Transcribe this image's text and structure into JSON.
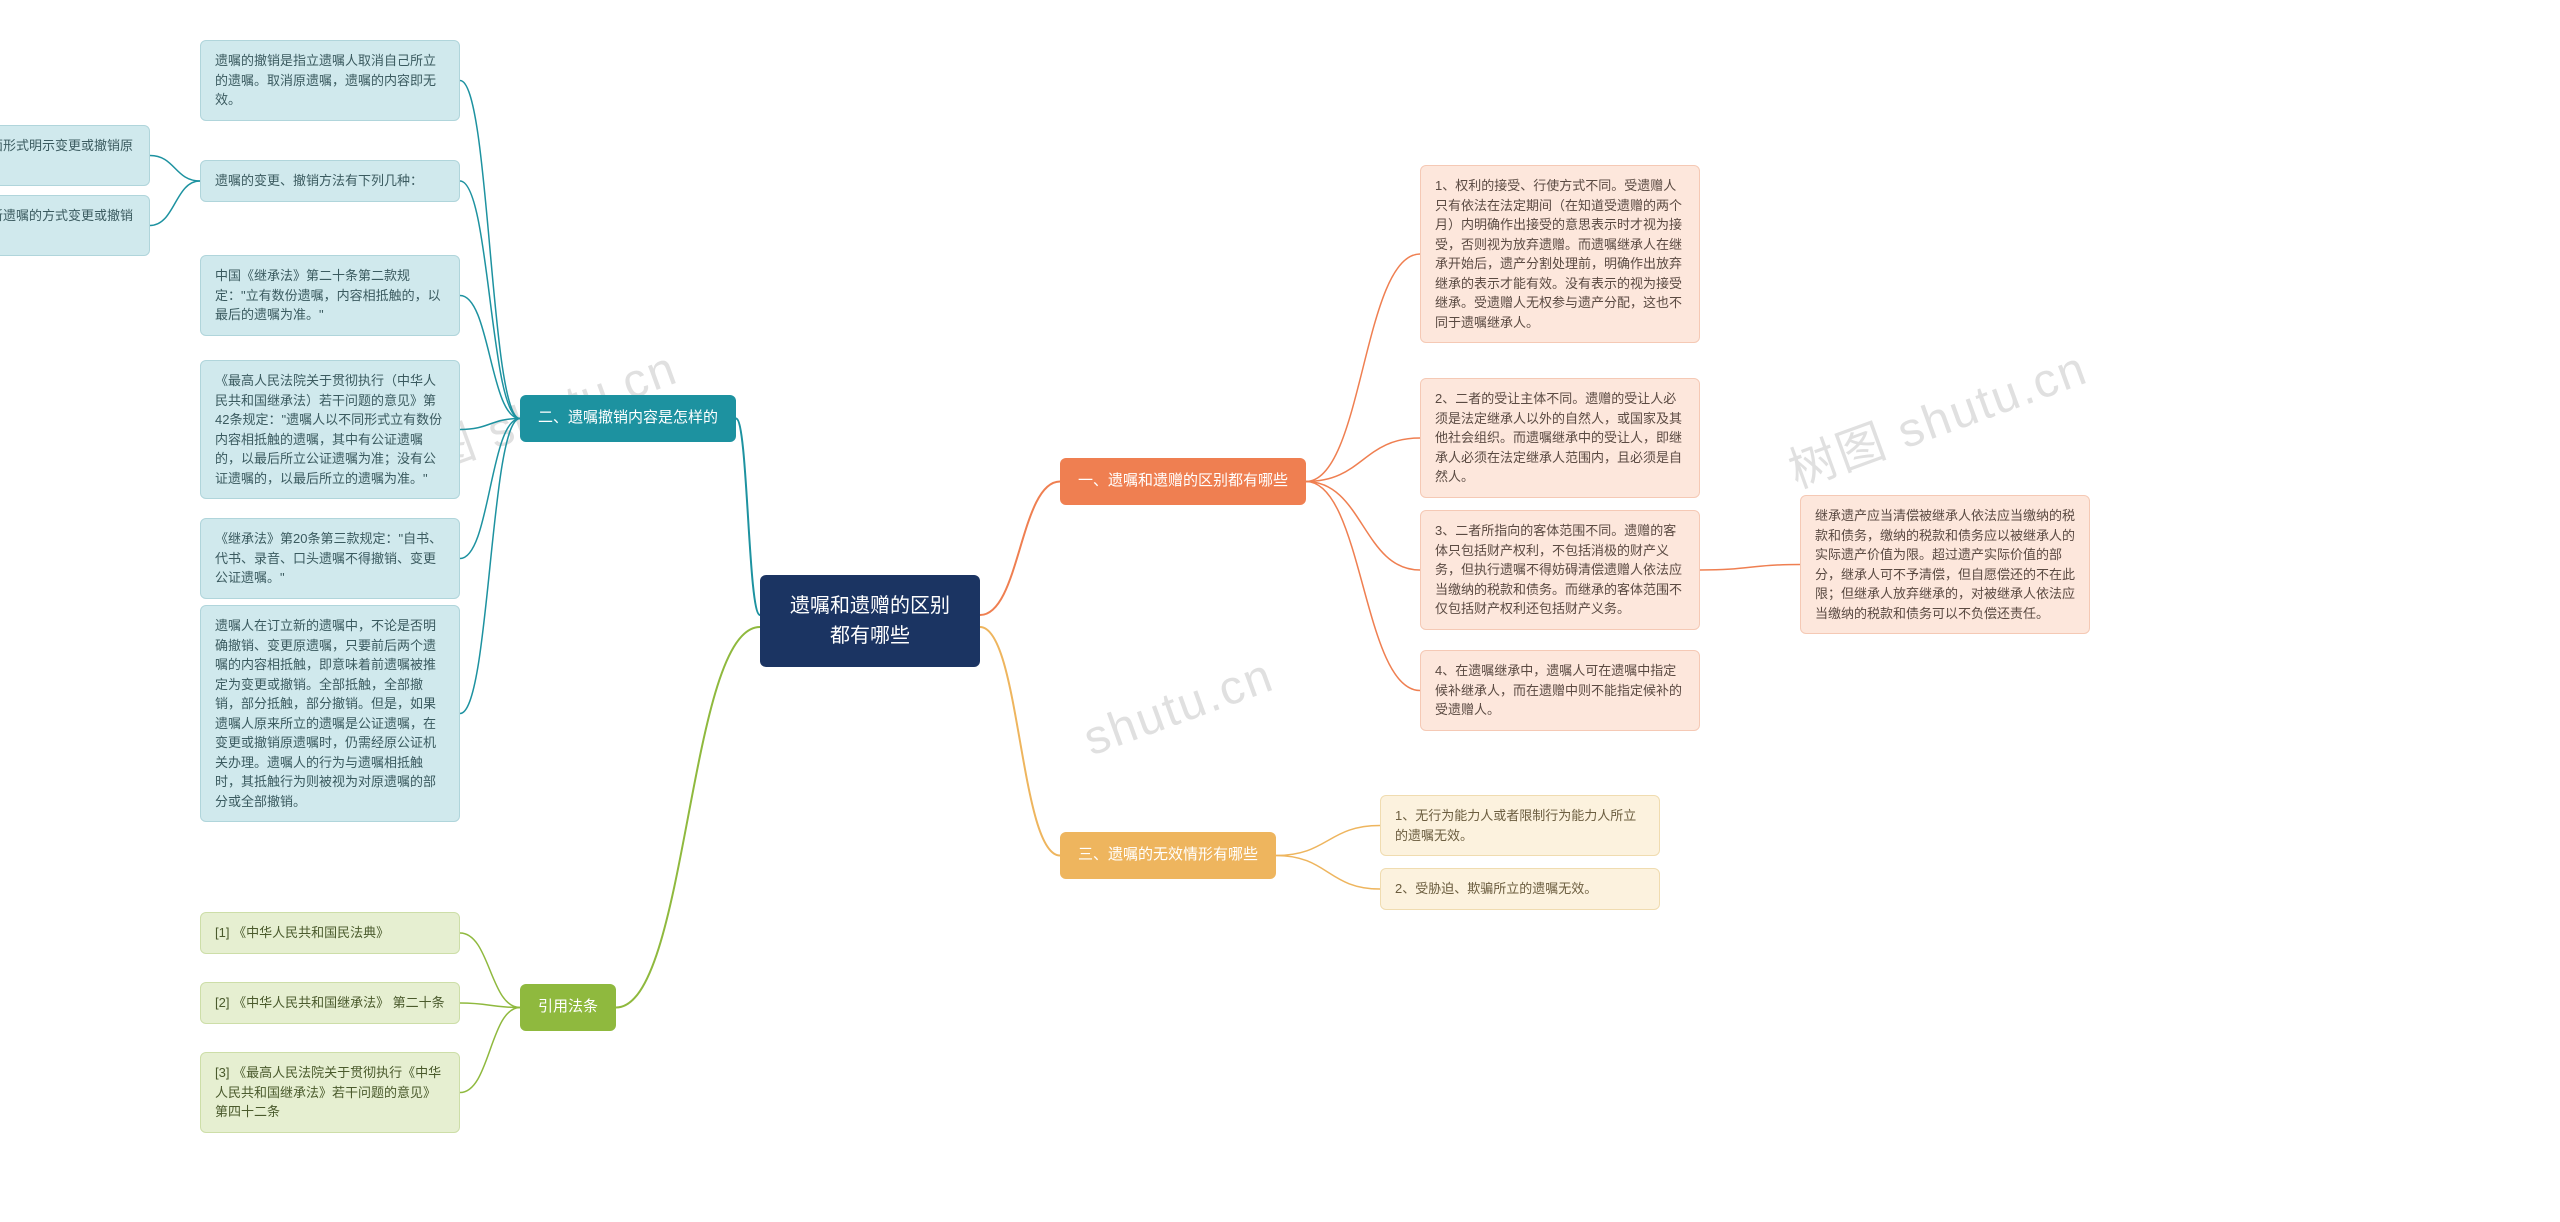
{
  "watermarks": [
    "树图 shutu.cn",
    "shutu.cn",
    "树图 shutu.cn"
  ],
  "root": {
    "title": "遗嘱和遗赠的区别都有哪些"
  },
  "branch1": {
    "label": "一、遗嘱和遗赠的区别都有哪些",
    "items": [
      "1、权利的接受、行使方式不同。受遗赠人只有依法在法定期间（在知道受遗赠的两个月）内明确作出接受的意思表示时才视为接受，否则视为放弃遗赠。而遗嘱继承人在继承开始后，遗产分割处理前，明确作出放弃继承的表示才能有效。没有表示的视为接受继承。受遗赠人无权参与遗产分配，这也不同于遗嘱继承人。",
      "2、二者的受让主体不同。遗赠的受让人必须是法定继承人以外的自然人，或国家及其他社会组织。而遗嘱继承中的受让人，即继承人必须在法定继承人范围内，且必须是自然人。",
      "3、二者所指向的客体范围不同。遗赠的客体只包括财产权利，不包括消极的财产义务，但执行遗嘱不得妨碍清偿遗赠人依法应当缴纳的税款和债务。而继承的客体范围不仅包括财产权利还包括财产义务。",
      "4、在遗嘱继承中，遗嘱人可在遗嘱中指定候补继承人，而在遗赠中则不能指定候补的受遗赠人。"
    ],
    "extra": "继承遗产应当清偿被继承人依法应当缴纳的税款和债务，缴纳的税款和债务应以被继承人的实际遗产价值为限。超过遗产实际价值的部分，继承人可不予清偿，但自愿偿还的不在此限；但继承人放弃继承的，对被继承人依法应当缴纳的税款和债务可以不负偿还责任。"
  },
  "branch2": {
    "label": "二、遗嘱撤销内容是怎样的",
    "items": [
      "遗嘱的撤销是指立遗嘱人取消自己所立的遗嘱。取消原遗嘱，遗嘱的内容即无效。",
      "遗嘱的变更、撤销方法有下列几种：",
      "中国《继承法》第二十条第二款规定：\"立有数份遗嘱，内容相抵触的，以最后的遗嘱为准。\"",
      "《最高人民法院关于贯彻执行（中华人民共和国继承法）若干问题的意见》第42条规定：\"遗嘱人以不同形式立有数份内容相抵触的遗嘱，其中有公证遗嘱的，以最后所立公证遗嘱为准；没有公证遗嘱的，以最后所立的遗嘱为准。\"",
      "《继承法》第20条第三款规定：\"自书、代书、录音、口头遗嘱不得撤销、变更公证遗嘱。\"",
      "遗嘱人在订立新的遗嘱中，不论是否明确撤销、变更原遗嘱，只要前后两个遗嘱的内容相抵触，即意味着前遗嘱被推定为变更或撤销。全部抵触，全部撤销，部分抵触，部分撤销。但是，如果遗嘱人原来所立的遗嘱是公证遗嘱，在变更或撤销原遗嘱时，仍需经原公证机关办理。遗嘱人的行为与遗嘱相抵触时，其抵触行为则被视为对原遗嘱的部分或全部撤销。"
    ],
    "sub": [
      "（一）以书面形式明示变更或撤销原遗嘱。",
      "（二）以立新遗嘱的方式变更或撤销原遗嘱。"
    ]
  },
  "branch3": {
    "label": "三、遗嘱的无效情形有哪些",
    "items": [
      "1、无行为能力人或者限制行为能力人所立的遗嘱无效。",
      "2、受胁迫、欺骗所立的遗嘱无效。"
    ]
  },
  "branch4": {
    "label": "引用法条",
    "items": [
      "[1] 《中华人民共和国民法典》",
      "[2] 《中华人民共和国继承法》 第二十条",
      "[3] 《最高人民法院关于贯彻执行《中华人民共和国继承法》若干问题的意见》 第四十二条"
    ]
  },
  "colors": {
    "root": "#1b3462",
    "b1": "#ef7f51",
    "b2": "#1d92a0",
    "b3": "#eeb55e",
    "b4": "#8fb93e",
    "leaf_orange": "#fde7dc",
    "leaf_teal": "#d0e9ed",
    "leaf_yellow": "#fcf2de",
    "leaf_green": "#e6efd1"
  }
}
